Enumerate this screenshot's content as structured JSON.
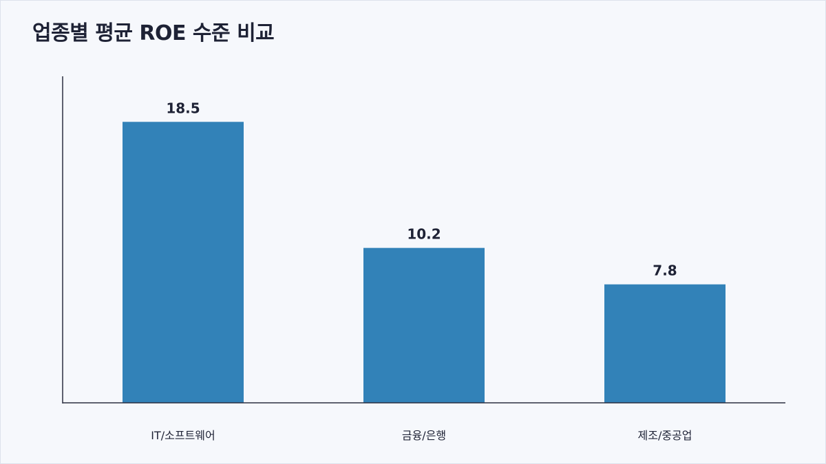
{
  "chart_data": {
    "type": "bar",
    "title": "업종별 평균 ROE 수준 비교",
    "xlabel": "",
    "ylabel": "",
    "categories": [
      "IT/소프트웨어",
      "금융/은행",
      "제조/중공업"
    ],
    "values": [
      18.5,
      10.2,
      7.8
    ],
    "ylim": [
      0,
      21.5
    ],
    "grid": false,
    "legend": "none",
    "bar_color": "#3282b8",
    "axis_color": "#2a2e3f",
    "text_color": "#1e2235",
    "background": "#f6f8fc"
  }
}
